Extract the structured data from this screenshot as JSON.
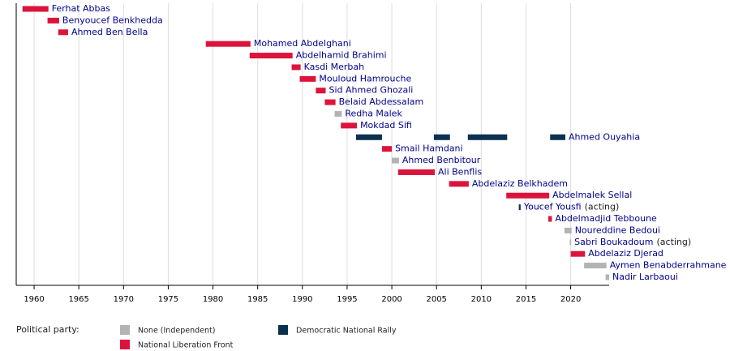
{
  "chart_data": {
    "type": "timeline",
    "xlim": [
      1958,
      2024.3
    ],
    "xticks": [
      1960,
      1965,
      1970,
      1975,
      1980,
      1985,
      1990,
      1995,
      2000,
      2005,
      2010,
      2015,
      2020
    ],
    "grid": true,
    "legend_title": "Political party:",
    "series": [
      {
        "name": "None (Independent)",
        "color": "#b3b3b3"
      },
      {
        "name": "National Liberation Front",
        "color": "#dc143c"
      },
      {
        "name": "Democratic National Rally",
        "color": "#0b3050"
      }
    ],
    "rows": [
      {
        "name": "Ferhat Abbas",
        "party": 1,
        "segments": [
          [
            1958.7,
            1961.6
          ]
        ]
      },
      {
        "name": "Benyoucef Benkhedda",
        "party": 1,
        "segments": [
          [
            1961.5,
            1962.8
          ]
        ]
      },
      {
        "name": "Ahmed Ben Bella",
        "party": 1,
        "segments": [
          [
            1962.7,
            1963.8
          ]
        ]
      },
      {
        "name": "Mohamed Abdelghani",
        "party": 1,
        "segments": [
          [
            1979.2,
            1984.2
          ]
        ]
      },
      {
        "name": "Abdelhamid Brahimi",
        "party": 1,
        "segments": [
          [
            1984.1,
            1988.9
          ]
        ]
      },
      {
        "name": "Kasdi Merbah",
        "party": 1,
        "segments": [
          [
            1988.8,
            1989.8
          ]
        ]
      },
      {
        "name": "Mouloud Hamrouche",
        "party": 1,
        "segments": [
          [
            1989.7,
            1991.5
          ]
        ]
      },
      {
        "name": "Sid Ahmed Ghozali",
        "party": 1,
        "segments": [
          [
            1991.5,
            1992.6
          ]
        ]
      },
      {
        "name": "Belaid Abdessalam",
        "party": 1,
        "segments": [
          [
            1992.5,
            1993.7
          ]
        ]
      },
      {
        "name": "Redha Malek",
        "party": 0,
        "segments": [
          [
            1993.6,
            1994.4
          ]
        ]
      },
      {
        "name": "Mokdad Sifi",
        "party": 1,
        "segments": [
          [
            1994.3,
            1996.1
          ]
        ]
      },
      {
        "name": "Ahmed Ouyahia",
        "party": 2,
        "segments": [
          [
            1996.0,
            1998.9
          ],
          [
            2004.7,
            2006.5
          ],
          [
            2008.5,
            2012.9
          ],
          [
            2017.7,
            2019.4
          ]
        ]
      },
      {
        "name": "Smail Hamdani",
        "party": 1,
        "segments": [
          [
            1998.9,
            2000.0
          ]
        ]
      },
      {
        "name": "Ahmed Benbitour",
        "party": 0,
        "segments": [
          [
            2000.0,
            2000.8
          ]
        ]
      },
      {
        "name": "Ali Benflis",
        "party": 1,
        "segments": [
          [
            2000.7,
            2004.8
          ]
        ]
      },
      {
        "name": "Abdelaziz Belkhadem",
        "party": 1,
        "segments": [
          [
            2006.4,
            2008.6
          ]
        ]
      },
      {
        "name": "Abdelmalek Sellal",
        "party": 1,
        "segments": [
          [
            2012.8,
            2017.6
          ]
        ]
      },
      {
        "name": "Youcef Yousfi",
        "note": "(acting)",
        "party": 2,
        "segments": [
          [
            2014.2,
            2014.4
          ]
        ]
      },
      {
        "name": "Abdelmadjid Tebboune",
        "party": 1,
        "segments": [
          [
            2017.5,
            2017.9
          ]
        ]
      },
      {
        "name": "Noureddine Bedoui",
        "party": 0,
        "segments": [
          [
            2019.3,
            2020.1
          ]
        ]
      },
      {
        "name": "Sabri Boukadoum",
        "note": "(acting)",
        "party": 0,
        "segments": [
          [
            2019.9,
            2020.05
          ]
        ]
      },
      {
        "name": "Abdelaziz Djerad",
        "party": 1,
        "segments": [
          [
            2020.0,
            2021.6
          ]
        ]
      },
      {
        "name": "Aymen Benabderrahmane",
        "party": 0,
        "segments": [
          [
            2021.5,
            2024.0
          ]
        ]
      },
      {
        "name": "Nadir Larbaoui",
        "party": 0,
        "segments": [
          [
            2023.9,
            2024.3
          ]
        ]
      }
    ]
  }
}
